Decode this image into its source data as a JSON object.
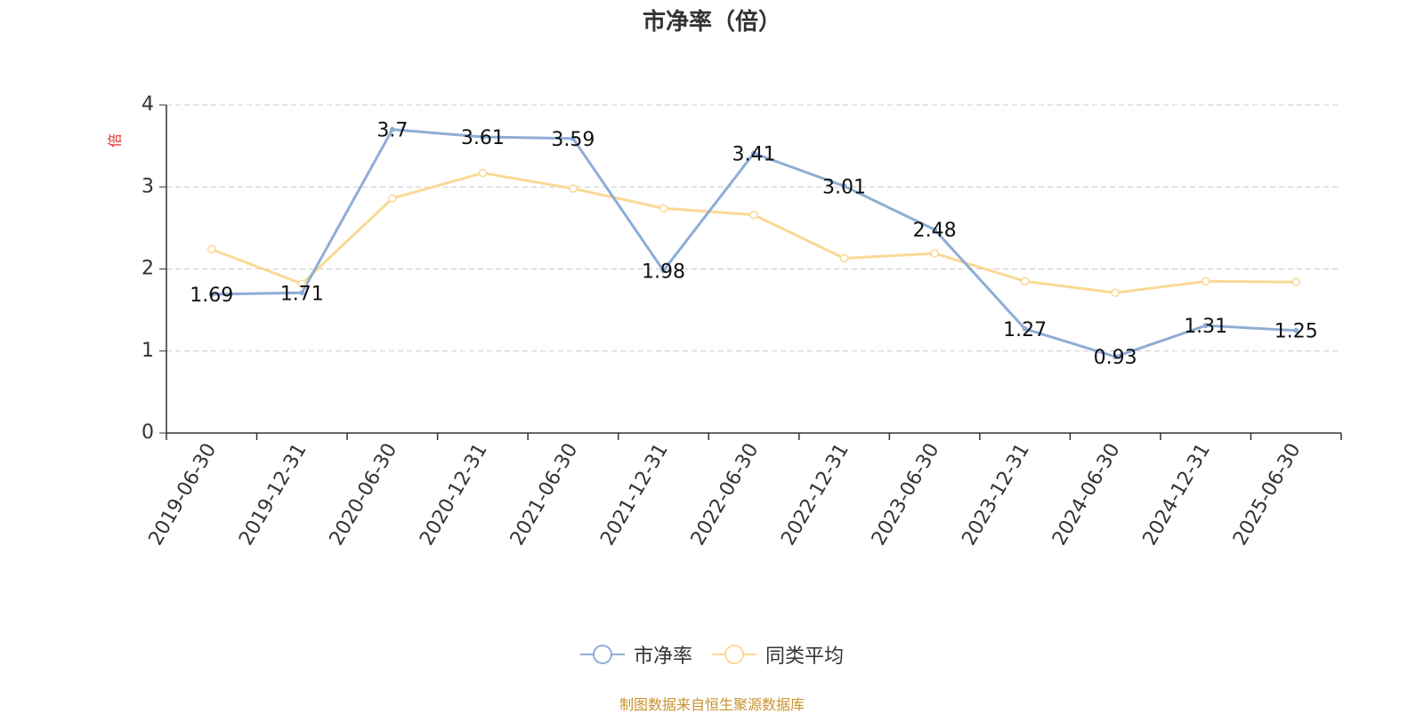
{
  "chart_data": {
    "type": "line",
    "title": "市净率（倍）",
    "ylabel": "倍",
    "xlabel": "",
    "ylim": [
      0,
      4
    ],
    "yticks": [
      "0",
      "1",
      "2",
      "3",
      "4"
    ],
    "grid": true,
    "legend_position": "bottom-center",
    "categories": [
      "2019-06-30",
      "2019-12-31",
      "2020-06-30",
      "2020-12-31",
      "2021-06-30",
      "2021-12-31",
      "2022-06-30",
      "2022-12-31",
      "2023-06-30",
      "2023-12-31",
      "2024-06-30",
      "2024-12-31",
      "2025-06-30"
    ],
    "series": [
      {
        "name": "市净率",
        "color": "#8eadd6",
        "values": [
          1.69,
          1.71,
          3.7,
          3.61,
          3.59,
          1.98,
          3.41,
          3.01,
          2.48,
          1.27,
          0.93,
          1.31,
          1.25
        ],
        "labels": [
          "1.69",
          "1.71",
          "3.7",
          "3.61",
          "3.59",
          "1.98",
          "3.41",
          "3.01",
          "2.48",
          "1.27",
          "0.93",
          "1.31",
          "1.25"
        ]
      },
      {
        "name": "同类平均",
        "color": "#f9d995",
        "values": [
          2.24,
          1.82,
          2.86,
          3.17,
          2.98,
          2.74,
          2.66,
          2.13,
          2.19,
          1.85,
          1.71,
          1.85,
          1.84
        ]
      }
    ]
  },
  "colors": {
    "ylabel": "#e0322f",
    "axis": "#333333",
    "grid": "#cccccc",
    "source": "#c8932e"
  },
  "source_note": "制图数据来自恒生聚源数据库"
}
